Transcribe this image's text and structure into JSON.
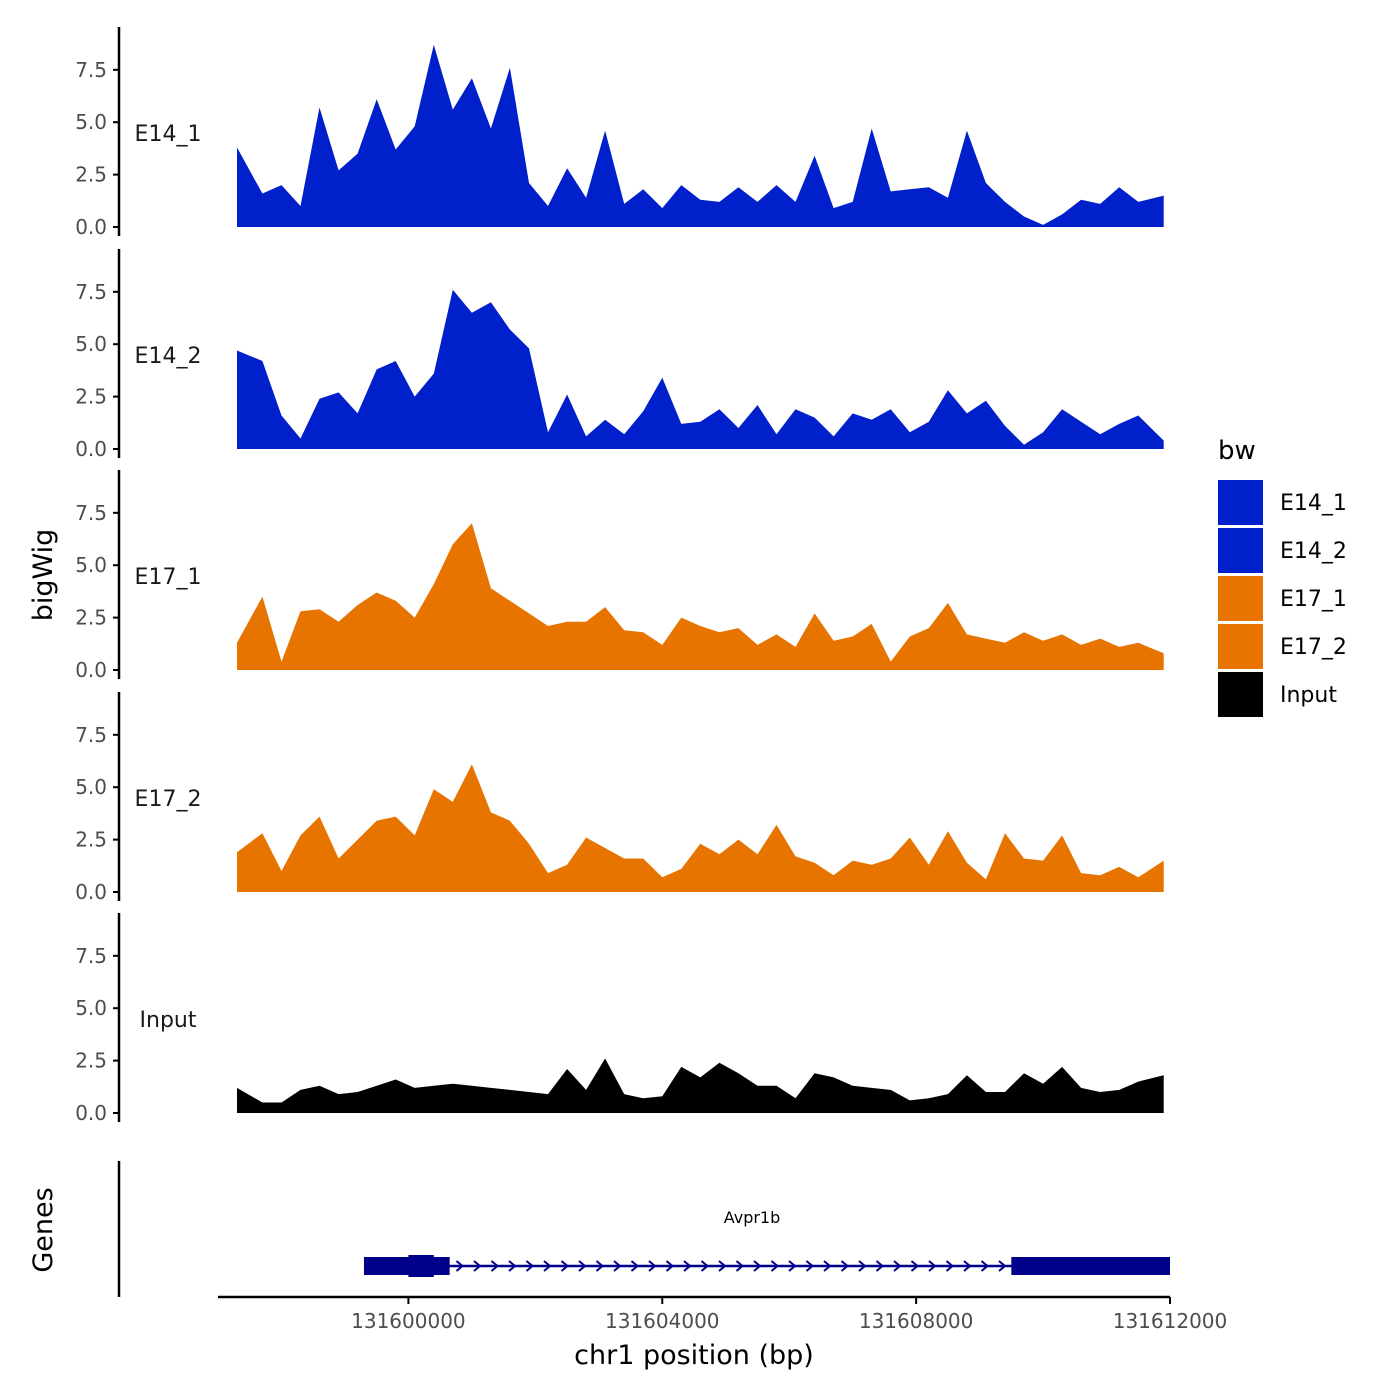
{
  "chart_data": {
    "type": "area",
    "ylabel": "bigWig",
    "xlabel": "chr1 position (bp)",
    "xlim": [
      131597000,
      131612000
    ],
    "ylim": [
      0,
      9.4
    ],
    "y_ticks": [
      0,
      2.5,
      5,
      7.5
    ],
    "y_tick_labels": [
      "0.0",
      "2.5",
      "5.0",
      "7.5"
    ],
    "x_ticks": [
      131600000,
      131604000,
      131608000,
      131612000
    ],
    "x_tick_labels": [
      "131600000",
      "131604000",
      "131608000",
      "131612000"
    ],
    "x": [
      131597300,
      131597700,
      131598000,
      131598300,
      131598600,
      131598900,
      131599200,
      131599500,
      131599800,
      131600100,
      131600400,
      131600700,
      131601000,
      131601300,
      131601600,
      131601900,
      131602200,
      131602500,
      131602800,
      131603100,
      131603400,
      131603700,
      131604000,
      131604300,
      131604600,
      131604900,
      131605200,
      131605500,
      131605800,
      131606100,
      131606400,
      131606700,
      131607000,
      131607300,
      131607600,
      131607900,
      131608200,
      131608500,
      131608800,
      131609100,
      131609400,
      131609700,
      131610000,
      131610300,
      131610600,
      131610900,
      131611200,
      131611500,
      131611900
    ],
    "series": [
      {
        "name": "E14_1",
        "color": "#0020CC",
        "values": [
          3.8,
          1.6,
          2.0,
          1.0,
          5.7,
          2.7,
          3.5,
          6.1,
          3.7,
          4.8,
          8.7,
          5.6,
          7.1,
          4.7,
          7.6,
          2.1,
          1.0,
          2.8,
          1.4,
          4.6,
          1.1,
          1.8,
          0.9,
          2.0,
          1.3,
          1.2,
          1.9,
          1.2,
          2.0,
          1.2,
          3.4,
          0.9,
          1.2,
          4.7,
          1.7,
          1.8,
          1.9,
          1.4,
          4.6,
          2.1,
          1.2,
          0.5,
          0.1,
          0.6,
          1.3,
          1.1,
          1.9,
          1.2,
          1.5
        ]
      },
      {
        "name": "E14_2",
        "color": "#0020CC",
        "values": [
          4.7,
          4.2,
          1.6,
          0.5,
          2.4,
          2.7,
          1.7,
          3.8,
          4.2,
          2.5,
          3.6,
          7.6,
          6.5,
          7.0,
          5.7,
          4.8,
          0.8,
          2.6,
          0.6,
          1.4,
          0.7,
          1.8,
          3.4,
          1.2,
          1.3,
          1.9,
          1.0,
          2.1,
          0.7,
          1.9,
          1.5,
          0.6,
          1.7,
          1.4,
          1.9,
          0.8,
          1.3,
          2.8,
          1.7,
          2.3,
          1.1,
          0.2,
          0.8,
          1.9,
          1.3,
          0.7,
          1.2,
          1.6,
          0.4
        ]
      },
      {
        "name": "E17_1",
        "color": "#E87400",
        "values": [
          1.3,
          3.5,
          0.4,
          2.8,
          2.9,
          2.3,
          3.1,
          3.7,
          3.3,
          2.5,
          4.1,
          6.0,
          7.0,
          3.9,
          3.3,
          2.7,
          2.1,
          2.3,
          2.3,
          3.0,
          1.9,
          1.8,
          1.2,
          2.5,
          2.1,
          1.8,
          2.0,
          1.2,
          1.7,
          1.1,
          2.7,
          1.4,
          1.6,
          2.2,
          0.4,
          1.6,
          2.0,
          3.2,
          1.7,
          1.5,
          1.3,
          1.8,
          1.4,
          1.7,
          1.2,
          1.5,
          1.1,
          1.3,
          0.8
        ]
      },
      {
        "name": "E17_2",
        "color": "#E87400",
        "values": [
          1.9,
          2.8,
          1.0,
          2.7,
          3.6,
          1.6,
          2.5,
          3.4,
          3.6,
          2.7,
          4.9,
          4.3,
          6.1,
          3.8,
          3.4,
          2.3,
          0.9,
          1.3,
          2.6,
          2.1,
          1.6,
          1.6,
          0.7,
          1.1,
          2.3,
          1.8,
          2.5,
          1.8,
          3.2,
          1.7,
          1.4,
          0.8,
          1.5,
          1.3,
          1.6,
          2.6,
          1.3,
          2.9,
          1.4,
          0.6,
          2.8,
          1.6,
          1.5,
          2.7,
          0.9,
          0.8,
          1.2,
          0.7,
          1.5
        ]
      },
      {
        "name": "Input",
        "color": "#000000",
        "values": [
          1.2,
          0.5,
          0.5,
          1.1,
          1.3,
          0.9,
          1.0,
          1.3,
          1.6,
          1.2,
          1.3,
          1.4,
          1.3,
          1.2,
          1.1,
          1.0,
          0.9,
          2.1,
          1.1,
          2.6,
          0.9,
          0.7,
          0.8,
          2.2,
          1.7,
          2.4,
          1.9,
          1.3,
          1.3,
          0.7,
          1.9,
          1.7,
          1.3,
          1.2,
          1.1,
          0.6,
          0.7,
          0.9,
          1.8,
          1.0,
          1.0,
          1.9,
          1.4,
          2.2,
          1.2,
          1.0,
          1.1,
          1.5,
          1.8
        ]
      }
    ],
    "legend": {
      "title": "bw",
      "position": "right",
      "entries": [
        {
          "label": "E14_1",
          "color": "#0020CC"
        },
        {
          "label": "E14_2",
          "color": "#0020CC"
        },
        {
          "label": "E17_1",
          "color": "#E87400"
        },
        {
          "label": "E17_2",
          "color": "#E87400"
        },
        {
          "label": "Input",
          "color": "#000000"
        }
      ]
    },
    "genes_panel": {
      "title": "Genes",
      "color": "#00008B",
      "genes": [
        {
          "name": "Avpr1b",
          "start": 131599300,
          "end": 131612000,
          "exons": [
            [
              131599300,
              131600650
            ],
            [
              131609500,
              131612000
            ]
          ],
          "thick_exons": [
            [
              131600000,
              131600400
            ]
          ]
        }
      ]
    }
  }
}
